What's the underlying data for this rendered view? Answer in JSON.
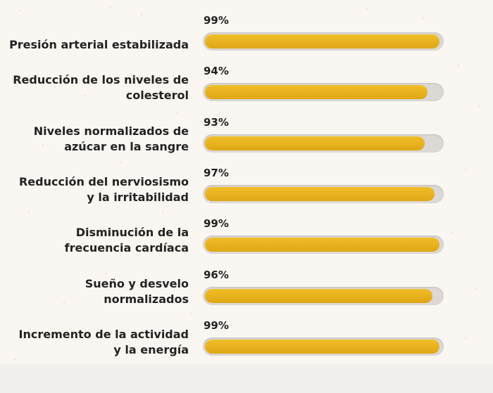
{
  "chart_data": {
    "type": "bar",
    "orientation": "horizontal",
    "xlim": [
      0,
      100
    ],
    "categories": [
      [
        "Presión arterial estabilizada"
      ],
      [
        "Reducción de los niveles de",
        "colesterol"
      ],
      [
        "Niveles normalizados de",
        "azúcar en la sangre"
      ],
      [
        "Reducción del nerviosismo",
        "y la irritabilidad"
      ],
      [
        "Disminución de la",
        "frecuencia cardíaca"
      ],
      [
        "Sueño y desvelo",
        "normalizados"
      ],
      [
        "Incremento de la actividad",
        "y la energía"
      ]
    ],
    "values": [
      99,
      94,
      93,
      97,
      99,
      96,
      99
    ],
    "value_labels": [
      "99%",
      "94%",
      "93%",
      "97%",
      "99%",
      "96%",
      "99%"
    ],
    "colors": {
      "bar": "#e8b01e",
      "track": "#dcd8d5",
      "background": "#faf7f2",
      "text": "#222222"
    }
  }
}
